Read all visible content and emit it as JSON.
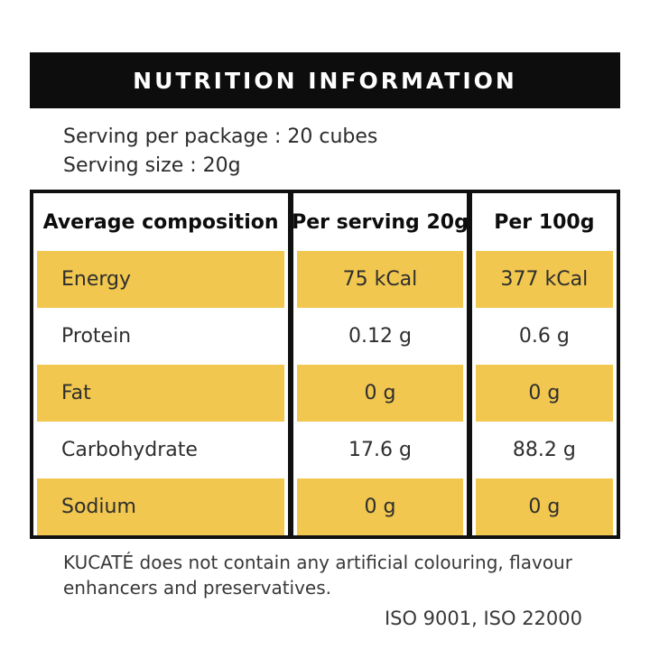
{
  "header": {
    "title": "NUTRITION INFORMATION"
  },
  "serving": {
    "per_package": "Serving per package : 20 cubes",
    "size": "Serving size : 20g"
  },
  "table": {
    "columns": [
      "Average composition",
      "Per serving 20g",
      "Per 100g"
    ],
    "rows": [
      {
        "label": "Energy",
        "per_serving": "75 kCal",
        "per_100g": "377 kCal",
        "highlight": true
      },
      {
        "label": "Protein",
        "per_serving": "0.12 g",
        "per_100g": "0.6 g",
        "highlight": false
      },
      {
        "label": "Fat",
        "per_serving": "0 g",
        "per_100g": "0 g",
        "highlight": true
      },
      {
        "label": "Carbohydrate",
        "per_serving": "17.6 g",
        "per_100g": "88.2 g",
        "highlight": false
      },
      {
        "label": "Sodium",
        "per_serving": "0 g",
        "per_100g": "0 g",
        "highlight": true
      }
    ]
  },
  "footer": {
    "disclaimer": "KUCATÉ does not contain any artificial colouring, flavour enhancers and preservatives.",
    "iso": "ISO 9001, ISO 22000"
  },
  "colors": {
    "accent_yellow": "#F1C74F",
    "bar_black": "#0D0D0D"
  }
}
